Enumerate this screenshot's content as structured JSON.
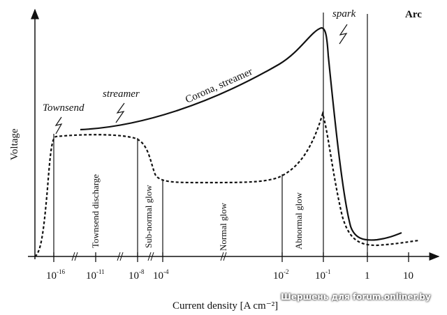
{
  "axes": {
    "ylabel": "Voltage",
    "xlabel": "Current density [A cm⁻²]",
    "xticks": [
      "10-16",
      "10-11",
      "10-8",
      "10-4",
      "10-2",
      "10-1",
      "1",
      "10"
    ]
  },
  "regions": {
    "townsend_discharge": "Townsend discharge",
    "subnormal_glow": "Sub-normal glow",
    "normal_glow": "Normal glow",
    "abnormal_glow": "Abnormal glow"
  },
  "annotations": {
    "townsend": "Townsend",
    "streamer": "streamer",
    "corona": "Corona, streamer",
    "spark": "spark",
    "arc": "Arc"
  },
  "watermark": "Шершень для forum.onliner.by"
}
